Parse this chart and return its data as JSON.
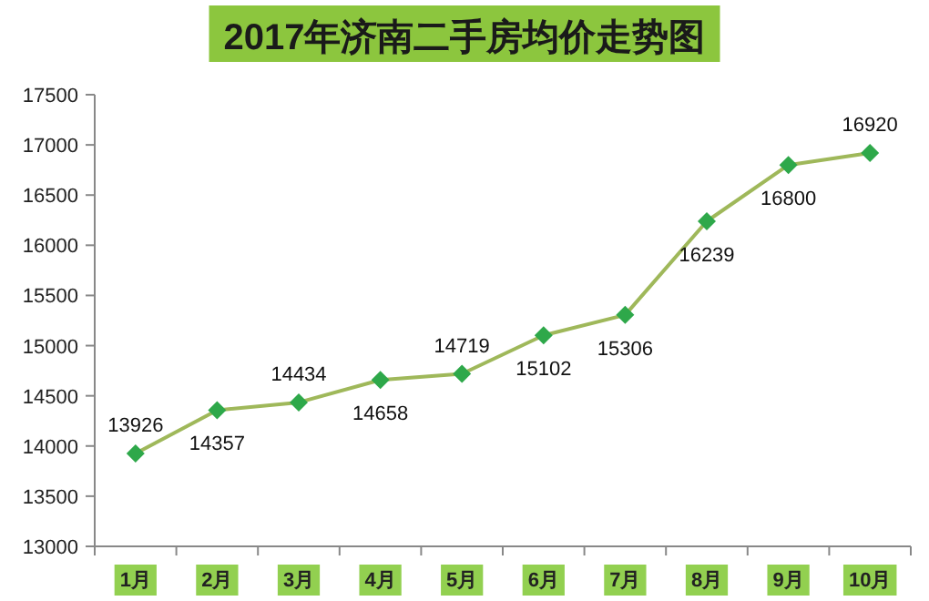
{
  "chart_data": {
    "type": "line",
    "title": "2017年济南二手房均价走势图",
    "categories": [
      "1月",
      "2月",
      "3月",
      "4月",
      "5月",
      "6月",
      "7月",
      "8月",
      "9月",
      "10月"
    ],
    "series": [
      {
        "color": "#9fb85a",
        "values": [
          13926,
          14357,
          14434,
          14658,
          14719,
          15102,
          15306,
          16239,
          16800,
          16920
        ]
      }
    ],
    "ylim": [
      13000,
      17500
    ],
    "yticks": [
      13000,
      13500,
      14000,
      14500,
      15000,
      15500,
      16000,
      16500,
      17000,
      17500
    ],
    "marker": "diamond",
    "data_labels": true,
    "grid": false
  }
}
